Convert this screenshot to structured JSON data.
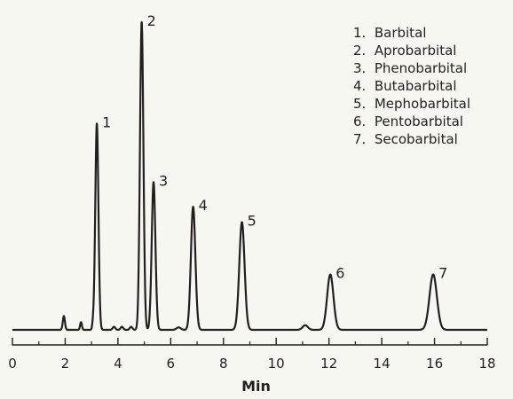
{
  "chart_data": {
    "type": "line",
    "xlabel": "Min",
    "ylabel": "",
    "xlim": [
      0,
      18
    ],
    "ylim": [
      0,
      100
    ],
    "x_ticks": [
      0,
      2,
      4,
      6,
      8,
      10,
      12,
      14,
      16,
      18
    ],
    "grid": false,
    "legend_position": "top-right",
    "line_color": "#231f20",
    "background_color": "#f7f7f2",
    "legend": [
      "1.  Barbital",
      "2.  Aprobarbital",
      "3.  Phenobarbital",
      "4.  Butabarbital",
      "5.  Mephobarbital",
      "6.  Pentobarbital",
      "7.  Secobarbital"
    ],
    "peaks": [
      {
        "label": "1",
        "time": 3.2,
        "height": 67,
        "width": 0.06
      },
      {
        "label": "2",
        "time": 4.9,
        "height": 100,
        "width": 0.065
      },
      {
        "label": "3",
        "time": 5.35,
        "height": 48,
        "width": 0.07
      },
      {
        "label": "4",
        "time": 6.85,
        "height": 40,
        "width": 0.085
      },
      {
        "label": "5",
        "time": 8.7,
        "height": 35,
        "width": 0.1
      },
      {
        "label": "6",
        "time": 12.05,
        "height": 18,
        "width": 0.12
      },
      {
        "label": "7",
        "time": 15.95,
        "height": 18,
        "width": 0.14
      }
    ],
    "minor_peaks": [
      {
        "time": 1.95,
        "height": 4.5,
        "width": 0.04
      },
      {
        "time": 2.6,
        "height": 2.5,
        "width": 0.035
      },
      {
        "time": 3.05,
        "height": 1.5,
        "width": 0.03
      },
      {
        "time": 3.85,
        "height": 1.0,
        "width": 0.05
      },
      {
        "time": 4.15,
        "height": 1.0,
        "width": 0.05
      },
      {
        "time": 4.5,
        "height": 1.0,
        "width": 0.05
      },
      {
        "time": 6.3,
        "height": 0.8,
        "width": 0.08
      },
      {
        "time": 11.1,
        "height": 1.5,
        "width": 0.1
      }
    ]
  }
}
